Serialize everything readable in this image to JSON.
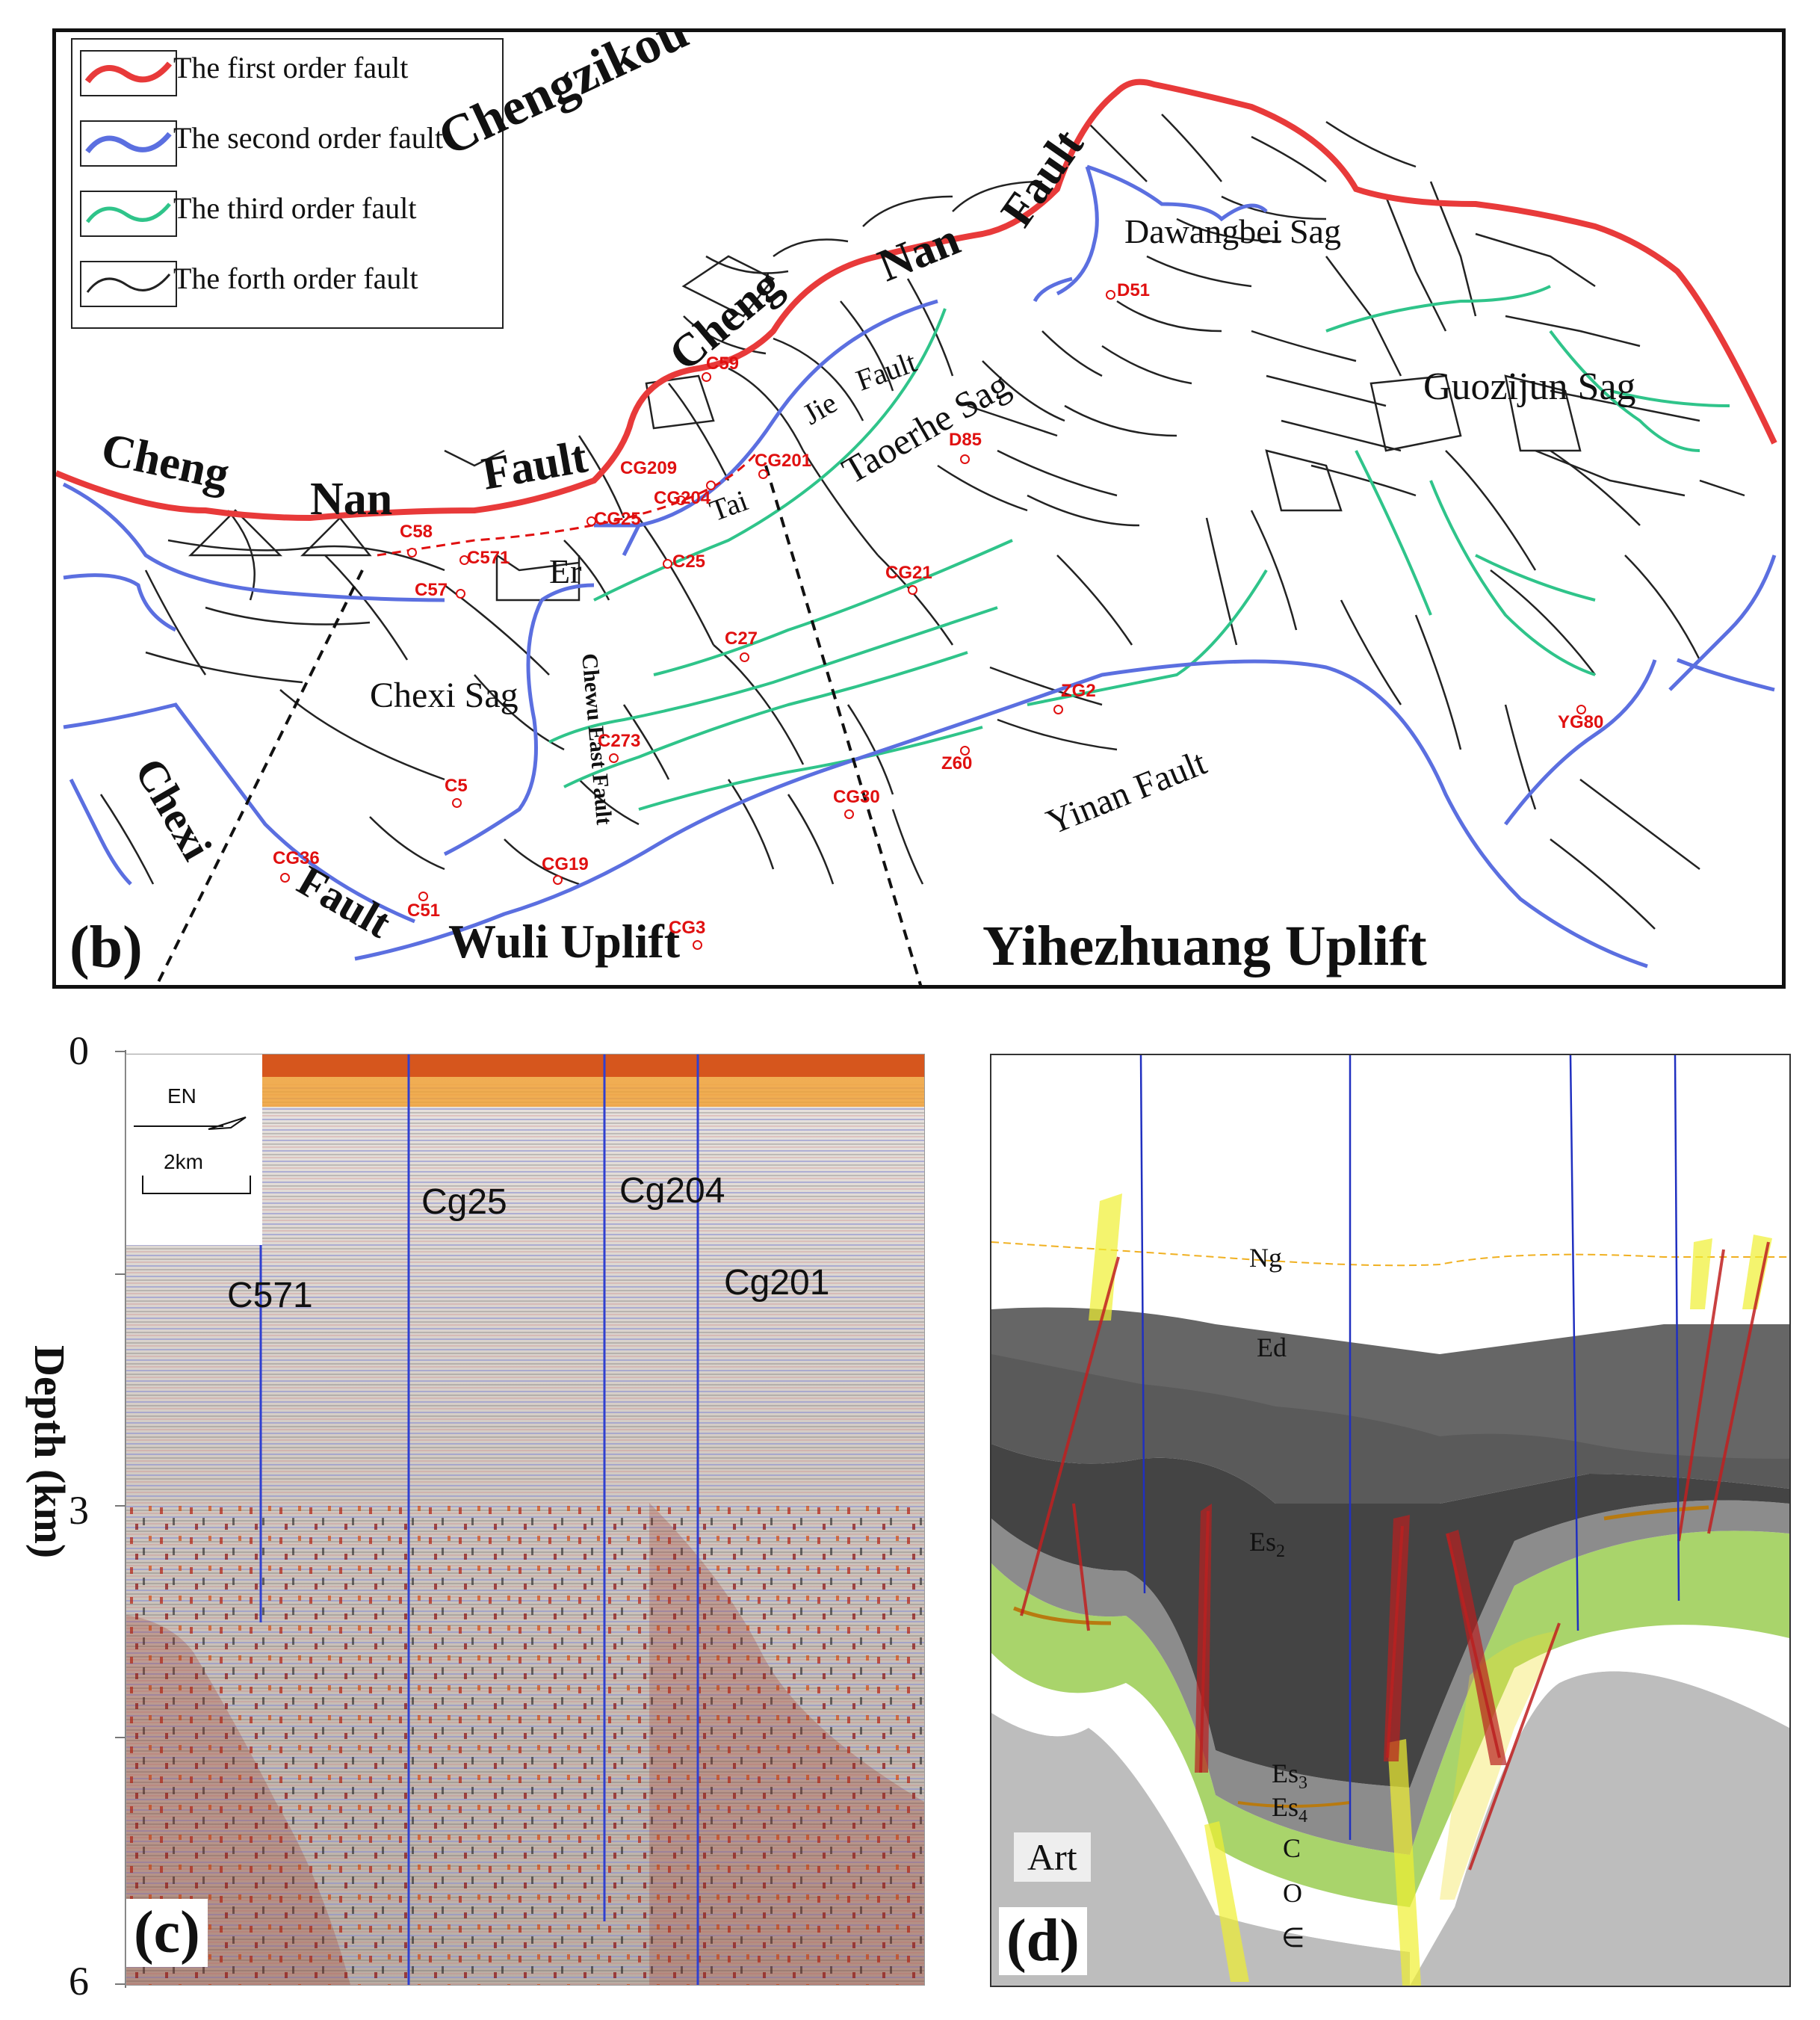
{
  "legend": {
    "items": [
      {
        "label": "The first order fault",
        "color": "#e83a3a"
      },
      {
        "label": "The second order fault",
        "color": "#5b6fe0"
      },
      {
        "label": "The third order fault",
        "color": "#2fc48a"
      },
      {
        "label": "The forth order fault",
        "color": "#222222"
      }
    ]
  },
  "map": {
    "panel_label": "(b)",
    "labels": {
      "chengzikou_uplift": "Chengzikou Uplift",
      "cheng_nan_fault_cheng_1": "Cheng",
      "cheng_nan_fault_nan_1": "Nan",
      "cheng_nan_fault_fault_1": "Fault",
      "cheng_nan_fault_cheng_2": "Cheng",
      "cheng_nan_fault_nan_2": "Nan",
      "cheng_nan_fault_fault_2": "Fault",
      "dawangbei_sag": "Dawangbei Sag",
      "guozijun_sag": "Guozijun Sag",
      "taoerhe_sag": "Taoerhe Sag",
      "jie": "Jie",
      "fault_tai": "Fault",
      "tai": "Tai",
      "er": "Er",
      "chexi_sag": "Chexi Sag",
      "chewu_east_fault": "Chewu East Fault",
      "chexi": "Chexi",
      "chexi_fault": "Fault",
      "wuli_uplift": "Wuli Uplift",
      "yihezhuang_uplift": "Yihezhuang Uplift",
      "yinan_fault": "Yinan Fault"
    },
    "wells": [
      {
        "name": "C59"
      },
      {
        "name": "CG209"
      },
      {
        "name": "CG201"
      },
      {
        "name": "CG204"
      },
      {
        "name": "CG25"
      },
      {
        "name": "C58"
      },
      {
        "name": "C571"
      },
      {
        "name": "C57"
      },
      {
        "name": "C25"
      },
      {
        "name": "D51"
      },
      {
        "name": "D85"
      },
      {
        "name": "CG21"
      },
      {
        "name": "C27"
      },
      {
        "name": "ZG2"
      },
      {
        "name": "YG80"
      },
      {
        "name": "C273"
      },
      {
        "name": "Z60"
      },
      {
        "name": "C5"
      },
      {
        "name": "CG30"
      },
      {
        "name": "CG36"
      },
      {
        "name": "CG19"
      },
      {
        "name": "C51"
      },
      {
        "name": "CG3"
      }
    ]
  },
  "seismic": {
    "panel_label": "(c)",
    "depth_axis_title": "Depth (km)",
    "depth_ticks": [
      "0",
      "3",
      "6"
    ],
    "orientation_label": "EN",
    "scale_label": "2km",
    "wells": [
      {
        "name": "C571"
      },
      {
        "name": "Cg25"
      },
      {
        "name": "Cg204"
      },
      {
        "name": "Cg201"
      }
    ]
  },
  "section": {
    "panel_label": "(d)",
    "units": {
      "ng": "Ng",
      "ed": "Ed",
      "es2_base": "Es",
      "es2_sub": "2",
      "es3_base": "Es",
      "es3_sub": "3",
      "es4_base": "Es",
      "es4_sub": "4",
      "c": "C",
      "o": "O",
      "cambrian": "∈",
      "art": "Art"
    }
  }
}
